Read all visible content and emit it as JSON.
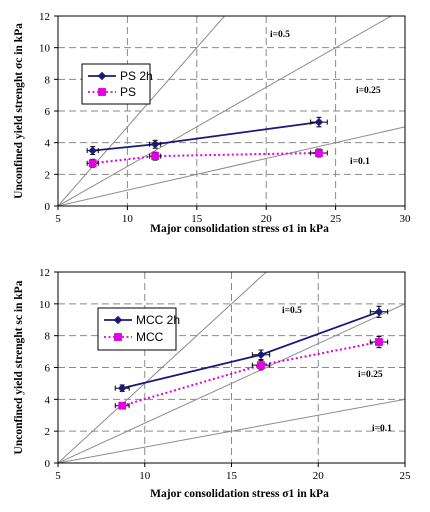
{
  "chart_data": [
    {
      "type": "line",
      "xlabel": "Major consolidation stress σ1 in kPa",
      "ylabel": "Unconfined yield strenght σc in kPa",
      "xlim": [
        5,
        30
      ],
      "ylim": [
        0,
        12
      ],
      "x_ticks": [
        "5",
        "10",
        "15",
        "20",
        "25",
        "30"
      ],
      "y_ticks": [
        "0",
        "2",
        "4",
        "6",
        "8",
        "10",
        "12"
      ],
      "grid": "dashed",
      "legend_position": "left",
      "series": [
        {
          "name": "PS 2h",
          "color": "#1a1a7a",
          "style": "solid",
          "marker": "diamond",
          "x": [
            7.5,
            12.0,
            23.8
          ],
          "y": [
            3.5,
            3.9,
            5.3
          ],
          "xerr": [
            0.4,
            0.4,
            0.6
          ],
          "yerr": [
            0.25,
            0.25,
            0.3
          ]
        },
        {
          "name": "PS",
          "color": "#e000e0",
          "style": "dotted",
          "marker": "square",
          "x": [
            7.5,
            12.0,
            23.8
          ],
          "y": [
            2.7,
            3.15,
            3.35
          ],
          "xerr": [
            0.4,
            0.4,
            0.6
          ],
          "yerr": [
            0.25,
            0.25,
            0.25
          ]
        }
      ],
      "reference_lines": [
        {
          "label": "i=0.5",
          "slope": 0.5
        },
        {
          "label": "i=0.25",
          "slope": 0.25
        },
        {
          "label": "i=0.1",
          "slope": 0.1
        }
      ]
    },
    {
      "type": "line",
      "xlabel": "Major consolidation stress σ1 in kPa",
      "ylabel": "Unconfined yield strenght sc in kPa",
      "xlim": [
        5,
        25
      ],
      "ylim": [
        0,
        12
      ],
      "x_ticks": [
        "5",
        "10",
        "15",
        "20",
        "25"
      ],
      "y_ticks": [
        "0",
        "2",
        "4",
        "6",
        "8",
        "10",
        "12"
      ],
      "grid": "dashed",
      "legend_position": "top-left",
      "series": [
        {
          "name": "MCC 2h",
          "color": "#1a1a7a",
          "style": "solid",
          "marker": "diamond",
          "x": [
            8.7,
            16.7,
            23.5
          ],
          "y": [
            4.7,
            6.8,
            9.5
          ],
          "xerr": [
            0.4,
            0.5,
            0.5
          ],
          "yerr": [
            0.2,
            0.3,
            0.35
          ]
        },
        {
          "name": "MCC",
          "color": "#e000e0",
          "style": "dotted",
          "marker": "square",
          "x": [
            8.7,
            16.7,
            23.5
          ],
          "y": [
            3.6,
            6.15,
            7.6
          ],
          "xerr": [
            0.4,
            0.5,
            0.5
          ],
          "yerr": [
            0.2,
            0.3,
            0.35
          ]
        }
      ],
      "reference_lines": [
        {
          "label": "i=0.5",
          "slope": 0.5
        },
        {
          "label": "i=0.25",
          "slope": 0.25
        },
        {
          "label": "i=0.1",
          "slope": 0.1
        }
      ]
    }
  ]
}
